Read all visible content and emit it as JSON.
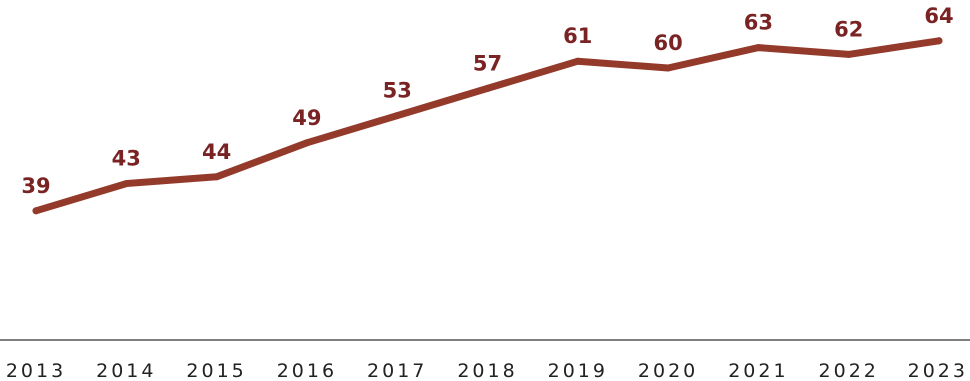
{
  "chart_data": {
    "type": "line",
    "title": "",
    "xlabel": "",
    "ylabel": "",
    "categories": [
      "2013",
      "2014",
      "2015",
      "2016",
      "2017",
      "2018",
      "2019",
      "2020",
      "2021",
      "2022",
      "2023"
    ],
    "series": [
      {
        "values": [
          39,
          43,
          44,
          49,
          53,
          57,
          61,
          60,
          63,
          62,
          64
        ],
        "data_labels": [
          "39",
          "43",
          "44",
          "49",
          "53",
          "57",
          "61",
          "60",
          "63",
          "62",
          "64"
        ]
      }
    ],
    "ylim": [
      20,
      70
    ],
    "grid": false,
    "legend": "none",
    "colors": {
      "line": "#943a2b",
      "labels": "#7a2324",
      "axis": "#333333"
    }
  }
}
